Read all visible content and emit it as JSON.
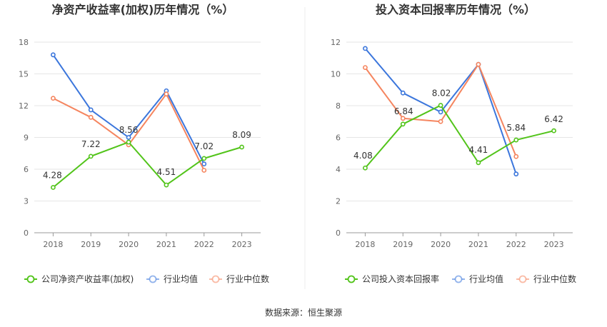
{
  "source": "数据来源：恒生聚源",
  "colors": {
    "company": "#52c41a",
    "avg": "#3b76dc",
    "median": "#f5855f"
  },
  "chart_data": [
    {
      "type": "line",
      "title": "净资产收益率(加权)历年情况（%）",
      "categories": [
        "2018",
        "2019",
        "2020",
        "2021",
        "2022",
        "2023"
      ],
      "yticks": [
        0,
        3,
        6,
        9,
        12,
        15,
        18
      ],
      "ylim": [
        0,
        18
      ],
      "series": [
        {
          "name": "公司净资产收益率(加权)",
          "key": "company",
          "values": [
            4.28,
            7.22,
            8.56,
            4.51,
            7.02,
            8.09
          ],
          "labels": [
            "4.28",
            "7.22",
            "8.56",
            "4.51",
            "7.02",
            "8.09"
          ]
        },
        {
          "name": "行业均值",
          "key": "avg",
          "values": [
            16.8,
            11.6,
            9.0,
            13.4,
            6.5,
            null
          ]
        },
        {
          "name": "行业中位数",
          "key": "median",
          "values": [
            12.7,
            10.9,
            8.3,
            13.1,
            5.9,
            null
          ]
        }
      ]
    },
    {
      "type": "line",
      "title": "投入资本回报率历年情况（%）",
      "categories": [
        "2018",
        "2019",
        "2020",
        "2021",
        "2022",
        "2023"
      ],
      "yticks": [
        0,
        2,
        4,
        6,
        8,
        10,
        12
      ],
      "ylim": [
        0,
        12
      ],
      "series": [
        {
          "name": "公司投入资本回报率",
          "key": "company",
          "values": [
            4.08,
            6.84,
            8.02,
            4.41,
            5.84,
            6.42
          ],
          "labels": [
            "4.08",
            "6.84",
            "8.02",
            "4.41",
            "5.84",
            "6.42"
          ]
        },
        {
          "name": "行业均值",
          "key": "avg",
          "values": [
            11.6,
            8.8,
            7.6,
            10.6,
            3.7,
            null
          ]
        },
        {
          "name": "行业中位数",
          "key": "median",
          "values": [
            10.4,
            7.2,
            7.0,
            10.6,
            4.8,
            null
          ]
        }
      ]
    }
  ]
}
